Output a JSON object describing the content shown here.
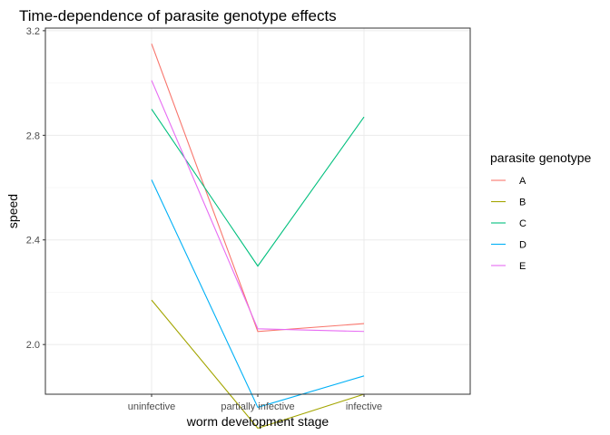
{
  "chart_data": {
    "type": "line",
    "title": "Time-dependence of parasite genotype effects",
    "xlabel": "worm development stage",
    "ylabel": "speed",
    "categories": [
      "uninfective",
      "partially infective",
      "infective"
    ],
    "ylim": [
      1.81,
      3.21
    ],
    "yticks": [
      2.0,
      2.4,
      2.8,
      3.2
    ],
    "ytick_labels": [
      "2.0",
      "2.4",
      "2.8",
      "3.2"
    ],
    "grid": true,
    "legend": {
      "title": "parasite genotype",
      "position": "right"
    },
    "series": [
      {
        "name": "A",
        "color": "#F8766D",
        "values": [
          3.15,
          2.05,
          2.08
        ]
      },
      {
        "name": "B",
        "color": "#A3A500",
        "values": [
          2.17,
          1.68,
          1.81
        ]
      },
      {
        "name": "C",
        "color": "#00BF7D",
        "values": [
          2.9,
          2.3,
          2.87
        ]
      },
      {
        "name": "D",
        "color": "#00B0F6",
        "values": [
          2.63,
          1.76,
          1.88
        ]
      },
      {
        "name": "E",
        "color": "#E76BF3",
        "values": [
          3.01,
          2.06,
          2.05
        ]
      }
    ]
  }
}
